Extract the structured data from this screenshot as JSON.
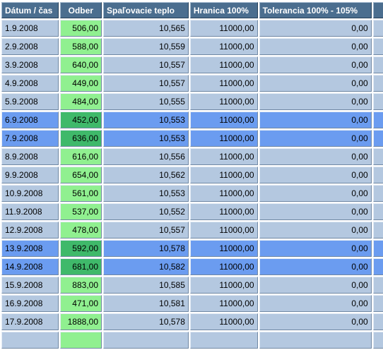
{
  "headers": {
    "date": "Dátum / čas",
    "odber": "Odber",
    "spalovacie": "Spaľovacie teplo",
    "hranica": "Hranica 100%",
    "tolerancia": "Tolerancia 100% - 105%"
  },
  "rows": [
    {
      "date": "1.9.2008",
      "odber": "506,00",
      "spalovacie": "10,565",
      "hranica": "11000,00",
      "tolerancia": "0,00",
      "weekend": false
    },
    {
      "date": "2.9.2008",
      "odber": "588,00",
      "spalovacie": "10,559",
      "hranica": "11000,00",
      "tolerancia": "0,00",
      "weekend": false
    },
    {
      "date": "3.9.2008",
      "odber": "640,00",
      "spalovacie": "10,557",
      "hranica": "11000,00",
      "tolerancia": "0,00",
      "weekend": false
    },
    {
      "date": "4.9.2008",
      "odber": "449,00",
      "spalovacie": "10,557",
      "hranica": "11000,00",
      "tolerancia": "0,00",
      "weekend": false
    },
    {
      "date": "5.9.2008",
      "odber": "484,00",
      "spalovacie": "10,555",
      "hranica": "11000,00",
      "tolerancia": "0,00",
      "weekend": false
    },
    {
      "date": "6.9.2008",
      "odber": "452,00",
      "spalovacie": "10,553",
      "hranica": "11000,00",
      "tolerancia": "0,00",
      "weekend": true
    },
    {
      "date": "7.9.2008",
      "odber": "636,00",
      "spalovacie": "10,553",
      "hranica": "11000,00",
      "tolerancia": "0,00",
      "weekend": true
    },
    {
      "date": "8.9.2008",
      "odber": "616,00",
      "spalovacie": "10,556",
      "hranica": "11000,00",
      "tolerancia": "0,00",
      "weekend": false
    },
    {
      "date": "9.9.2008",
      "odber": "654,00",
      "spalovacie": "10,562",
      "hranica": "11000,00",
      "tolerancia": "0,00",
      "weekend": false
    },
    {
      "date": "10.9.2008",
      "odber": "561,00",
      "spalovacie": "10,553",
      "hranica": "11000,00",
      "tolerancia": "0,00",
      "weekend": false
    },
    {
      "date": "11.9.2008",
      "odber": "537,00",
      "spalovacie": "10,552",
      "hranica": "11000,00",
      "tolerancia": "0,00",
      "weekend": false
    },
    {
      "date": "12.9.2008",
      "odber": "478,00",
      "spalovacie": "10,557",
      "hranica": "11000,00",
      "tolerancia": "0,00",
      "weekend": false
    },
    {
      "date": "13.9.2008",
      "odber": "592,00",
      "spalovacie": "10,578",
      "hranica": "11000,00",
      "tolerancia": "0,00",
      "weekend": true
    },
    {
      "date": "14.9.2008",
      "odber": "681,00",
      "spalovacie": "10,582",
      "hranica": "11000,00",
      "tolerancia": "0,00",
      "weekend": true
    },
    {
      "date": "15.9.2008",
      "odber": "883,00",
      "spalovacie": "10,585",
      "hranica": "11000,00",
      "tolerancia": "0,00",
      "weekend": false
    },
    {
      "date": "16.9.2008",
      "odber": "471,00",
      "spalovacie": "10,581",
      "hranica": "11000,00",
      "tolerancia": "0,00",
      "weekend": false
    },
    {
      "date": "17.9.2008",
      "odber": "1888,00",
      "spalovacie": "10,578",
      "hranica": "11000,00",
      "tolerancia": "0,00",
      "weekend": false
    },
    {
      "date": "",
      "odber": "",
      "spalovacie": "",
      "hranica": "",
      "tolerancia": "",
      "weekend": false
    }
  ],
  "colors": {
    "header_bg": "#4b6e8f",
    "row_bg": "#b4c8e0",
    "weekend_bg": "#6b9cf0",
    "odber_bg": "#90f090",
    "odber_weekend_bg": "#3fb96a"
  }
}
